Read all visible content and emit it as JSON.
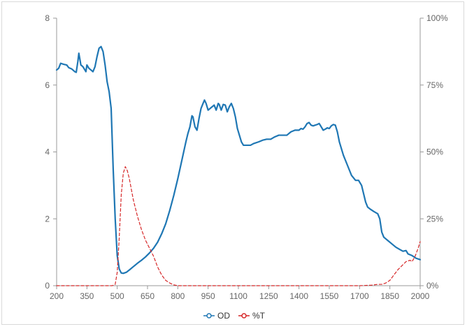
{
  "chart_data": {
    "type": "line",
    "title": "",
    "xlabel": "",
    "ylabel": "",
    "xlim": [
      200,
      2000
    ],
    "ylim_left": [
      0,
      8
    ],
    "ylim_right_percent": [
      0,
      100
    ],
    "x_ticks": [
      "200",
      "350",
      "500",
      "650",
      "800",
      "950",
      "1100",
      "1250",
      "1400",
      "1550",
      "1700",
      "1850",
      "2000"
    ],
    "y_left_ticks": [
      "0",
      "2",
      "4",
      "6",
      "8"
    ],
    "y_right_ticks": [
      "0%",
      "25%",
      "50%",
      "75%",
      "100%"
    ],
    "grid": false,
    "legend_position": "bottom-center",
    "series": [
      {
        "name": "OD",
        "axis": "left",
        "color": "#1f77b4",
        "style": "solid",
        "points": [
          [
            200,
            6.45
          ],
          [
            210,
            6.5
          ],
          [
            220,
            6.65
          ],
          [
            235,
            6.62
          ],
          [
            250,
            6.6
          ],
          [
            260,
            6.52
          ],
          [
            275,
            6.48
          ],
          [
            290,
            6.4
          ],
          [
            297,
            6.38
          ],
          [
            305,
            6.7
          ],
          [
            310,
            6.95
          ],
          [
            315,
            6.78
          ],
          [
            320,
            6.6
          ],
          [
            330,
            6.55
          ],
          [
            340,
            6.45
          ],
          [
            345,
            6.4
          ],
          [
            350,
            6.6
          ],
          [
            360,
            6.5
          ],
          [
            370,
            6.45
          ],
          [
            380,
            6.4
          ],
          [
            390,
            6.55
          ],
          [
            400,
            6.85
          ],
          [
            410,
            7.1
          ],
          [
            420,
            7.15
          ],
          [
            430,
            7.0
          ],
          [
            440,
            6.6
          ],
          [
            450,
            6.1
          ],
          [
            460,
            5.8
          ],
          [
            470,
            5.3
          ],
          [
            480,
            3.5
          ],
          [
            490,
            2.0
          ],
          [
            500,
            0.9
          ],
          [
            510,
            0.5
          ],
          [
            520,
            0.38
          ],
          [
            530,
            0.37
          ],
          [
            545,
            0.4
          ],
          [
            560,
            0.47
          ],
          [
            580,
            0.57
          ],
          [
            600,
            0.67
          ],
          [
            620,
            0.76
          ],
          [
            640,
            0.86
          ],
          [
            660,
            0.98
          ],
          [
            680,
            1.12
          ],
          [
            700,
            1.3
          ],
          [
            720,
            1.55
          ],
          [
            740,
            1.85
          ],
          [
            760,
            2.25
          ],
          [
            780,
            2.7
          ],
          [
            800,
            3.2
          ],
          [
            820,
            3.75
          ],
          [
            840,
            4.3
          ],
          [
            850,
            4.55
          ],
          [
            860,
            4.75
          ],
          [
            870,
            5.08
          ],
          [
            875,
            5.05
          ],
          [
            885,
            4.75
          ],
          [
            895,
            4.65
          ],
          [
            905,
            5.0
          ],
          [
            915,
            5.3
          ],
          [
            925,
            5.45
          ],
          [
            932,
            5.55
          ],
          [
            940,
            5.45
          ],
          [
            950,
            5.25
          ],
          [
            960,
            5.3
          ],
          [
            970,
            5.35
          ],
          [
            980,
            5.4
          ],
          [
            990,
            5.25
          ],
          [
            1000,
            5.45
          ],
          [
            1005,
            5.42
          ],
          [
            1015,
            5.25
          ],
          [
            1025,
            5.42
          ],
          [
            1035,
            5.4
          ],
          [
            1045,
            5.2
          ],
          [
            1055,
            5.35
          ],
          [
            1065,
            5.45
          ],
          [
            1075,
            5.3
          ],
          [
            1085,
            5.05
          ],
          [
            1095,
            4.7
          ],
          [
            1105,
            4.5
          ],
          [
            1115,
            4.3
          ],
          [
            1125,
            4.2
          ],
          [
            1140,
            4.2
          ],
          [
            1160,
            4.2
          ],
          [
            1175,
            4.25
          ],
          [
            1200,
            4.3
          ],
          [
            1220,
            4.35
          ],
          [
            1240,
            4.38
          ],
          [
            1260,
            4.38
          ],
          [
            1280,
            4.45
          ],
          [
            1300,
            4.5
          ],
          [
            1320,
            4.5
          ],
          [
            1340,
            4.5
          ],
          [
            1360,
            4.6
          ],
          [
            1380,
            4.65
          ],
          [
            1400,
            4.65
          ],
          [
            1410,
            4.7
          ],
          [
            1420,
            4.68
          ],
          [
            1430,
            4.75
          ],
          [
            1440,
            4.85
          ],
          [
            1450,
            4.88
          ],
          [
            1460,
            4.8
          ],
          [
            1470,
            4.78
          ],
          [
            1480,
            4.8
          ],
          [
            1490,
            4.82
          ],
          [
            1500,
            4.85
          ],
          [
            1510,
            4.75
          ],
          [
            1520,
            4.65
          ],
          [
            1530,
            4.68
          ],
          [
            1540,
            4.72
          ],
          [
            1550,
            4.7
          ],
          [
            1560,
            4.78
          ],
          [
            1570,
            4.82
          ],
          [
            1580,
            4.8
          ],
          [
            1590,
            4.6
          ],
          [
            1600,
            4.3
          ],
          [
            1620,
            3.9
          ],
          [
            1640,
            3.6
          ],
          [
            1660,
            3.3
          ],
          [
            1680,
            3.15
          ],
          [
            1695,
            3.15
          ],
          [
            1710,
            3.0
          ],
          [
            1720,
            2.75
          ],
          [
            1730,
            2.5
          ],
          [
            1740,
            2.35
          ],
          [
            1755,
            2.28
          ],
          [
            1770,
            2.22
          ],
          [
            1790,
            2.15
          ],
          [
            1800,
            2.0
          ],
          [
            1810,
            1.6
          ],
          [
            1820,
            1.45
          ],
          [
            1840,
            1.35
          ],
          [
            1860,
            1.25
          ],
          [
            1880,
            1.15
          ],
          [
            1900,
            1.08
          ],
          [
            1915,
            1.03
          ],
          [
            1930,
            1.05
          ],
          [
            1940,
            0.95
          ],
          [
            1960,
            0.9
          ],
          [
            1980,
            0.82
          ],
          [
            2000,
            0.78
          ]
        ]
      },
      {
        "name": "%T",
        "axis": "right",
        "color": "#d62728",
        "style": "dashed",
        "points": [
          [
            200,
            0
          ],
          [
            300,
            0
          ],
          [
            400,
            0
          ],
          [
            475,
            0
          ],
          [
            490,
            0.5
          ],
          [
            500,
            5
          ],
          [
            510,
            18
          ],
          [
            520,
            34
          ],
          [
            530,
            42
          ],
          [
            540,
            44.5
          ],
          [
            550,
            43
          ],
          [
            560,
            40
          ],
          [
            570,
            36
          ],
          [
            580,
            32
          ],
          [
            590,
            29
          ],
          [
            600,
            26
          ],
          [
            620,
            21
          ],
          [
            640,
            17
          ],
          [
            660,
            14
          ],
          [
            680,
            11
          ],
          [
            700,
            7
          ],
          [
            720,
            4
          ],
          [
            740,
            2
          ],
          [
            760,
            1
          ],
          [
            780,
            0.3
          ],
          [
            800,
            0
          ],
          [
            1000,
            0
          ],
          [
            1200,
            0
          ],
          [
            1400,
            0
          ],
          [
            1600,
            0
          ],
          [
            1700,
            0
          ],
          [
            1760,
            0.2
          ],
          [
            1790,
            0.5
          ],
          [
            1810,
            0.5
          ],
          [
            1830,
            1
          ],
          [
            1850,
            2
          ],
          [
            1870,
            4
          ],
          [
            1890,
            6
          ],
          [
            1910,
            7.5
          ],
          [
            1930,
            9
          ],
          [
            1950,
            9.5
          ],
          [
            1960,
            9
          ],
          [
            1975,
            11
          ],
          [
            1990,
            14
          ],
          [
            2000,
            16.5
          ]
        ]
      }
    ]
  }
}
